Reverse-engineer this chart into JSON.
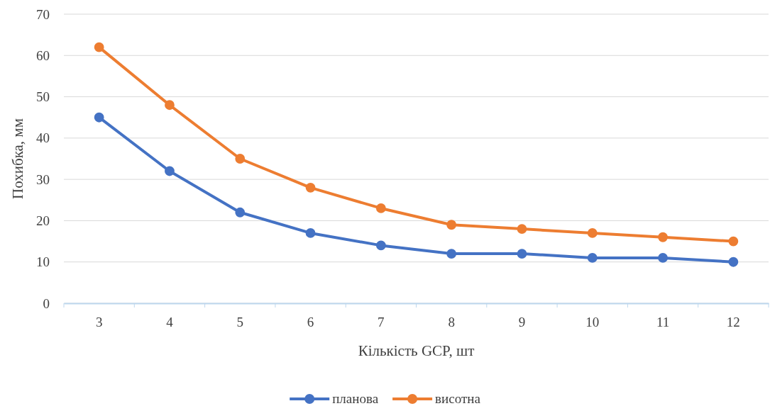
{
  "chart_data": {
    "type": "line",
    "xlabel": "Кількість GCP, шт",
    "ylabel": "Похибка, мм",
    "categories": [
      "3",
      "4",
      "5",
      "6",
      "7",
      "8",
      "9",
      "10",
      "11",
      "12"
    ],
    "series": [
      {
        "name": "планова",
        "color": "#4472c4",
        "values": [
          45,
          32,
          22,
          17,
          14,
          12,
          12,
          11,
          11,
          10
        ]
      },
      {
        "name": "висотна",
        "color": "#ed7d31",
        "values": [
          62,
          48,
          35,
          28,
          23,
          19,
          18,
          17,
          16,
          15
        ]
      }
    ],
    "ylim": [
      0,
      70
    ],
    "yticks": [
      0,
      10,
      20,
      30,
      40,
      50,
      60,
      70
    ],
    "grid": "y",
    "legend": "bottom",
    "marker": "circle",
    "line_style": "solid"
  }
}
